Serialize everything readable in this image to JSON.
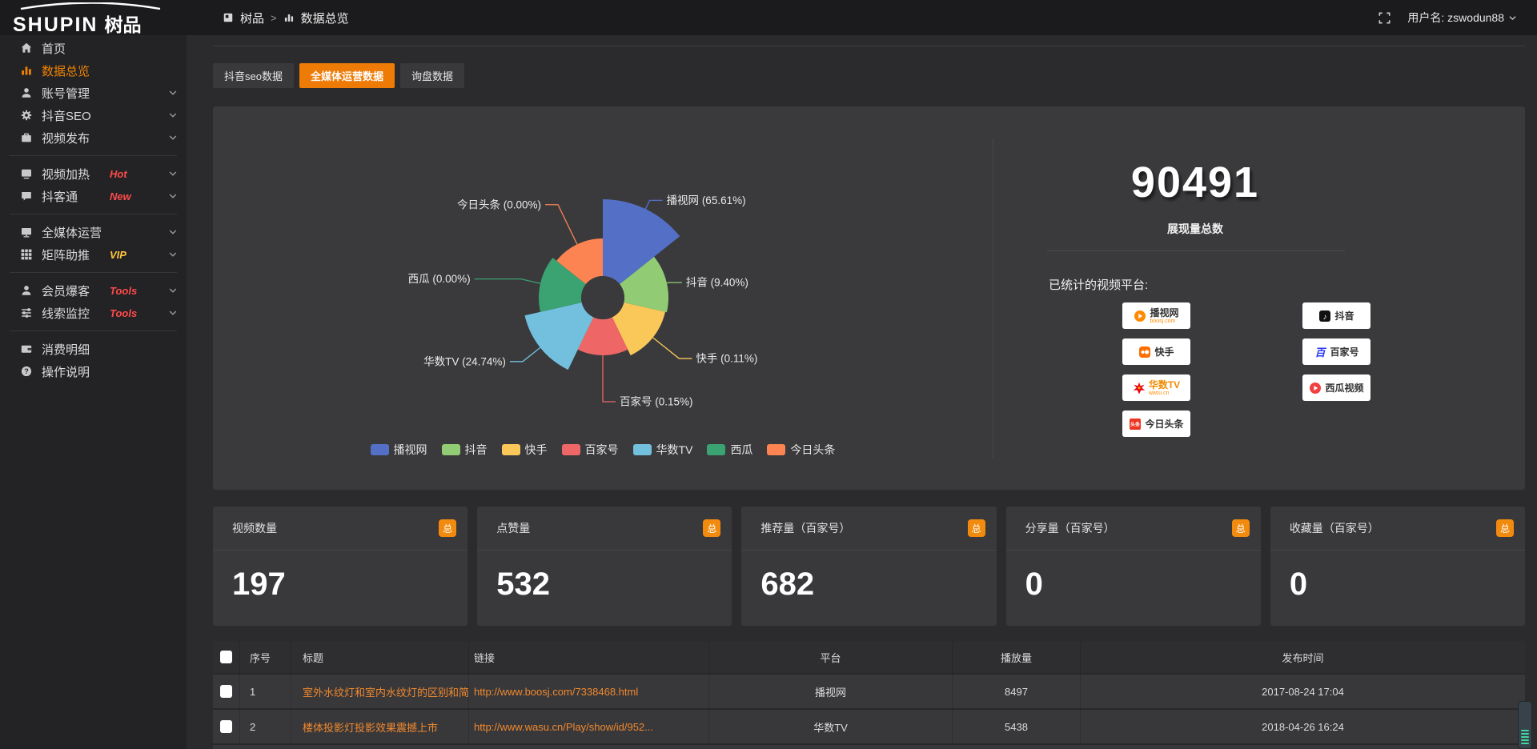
{
  "brand": {
    "en": "SHUPIN",
    "cn": "树品"
  },
  "topbar": {
    "breadcrumb_home": "树品",
    "breadcrumb_sep": ">",
    "breadcrumb_current": "数据总览",
    "username": "用户名: zswodun88"
  },
  "sidebar": {
    "items": [
      {
        "label": "首页",
        "icon": "home-icon",
        "active": false,
        "chevron": false,
        "badge": null,
        "divider_after": false
      },
      {
        "label": "数据总览",
        "icon": "bar-chart-icon",
        "active": true,
        "chevron": false,
        "badge": null,
        "divider_after": false
      },
      {
        "label": "账号管理",
        "icon": "user-icon",
        "active": false,
        "chevron": true,
        "badge": null,
        "divider_after": false
      },
      {
        "label": "抖音SEO",
        "icon": "gear-icon",
        "active": false,
        "chevron": true,
        "badge": null,
        "divider_after": false
      },
      {
        "label": "视频发布",
        "icon": "briefcase-icon",
        "active": false,
        "chevron": true,
        "badge": null,
        "divider_after": true
      },
      {
        "label": "视频加热",
        "icon": "screen-icon",
        "active": false,
        "chevron": true,
        "badge": {
          "text": "Hot",
          "color": "#ff4a4a"
        },
        "divider_after": false
      },
      {
        "label": "抖客通",
        "icon": "chat-icon",
        "active": false,
        "chevron": true,
        "badge": {
          "text": "New",
          "color": "#ff4a4a"
        },
        "divider_after": true
      },
      {
        "label": "全媒体运营",
        "icon": "monitor-icon",
        "active": false,
        "chevron": true,
        "badge": null,
        "divider_after": false
      },
      {
        "label": "矩阵助推",
        "icon": "grid-icon",
        "active": false,
        "chevron": true,
        "badge": {
          "text": "VIP",
          "color": "#ffc53d"
        },
        "divider_after": true
      },
      {
        "label": "会员爆客",
        "icon": "user-icon",
        "active": false,
        "chevron": true,
        "badge": {
          "text": "Tools",
          "color": "#ff4a4a"
        },
        "divider_after": false
      },
      {
        "label": "线索监控",
        "icon": "sliders-icon",
        "active": false,
        "chevron": true,
        "badge": {
          "text": "Tools",
          "color": "#ff4a4a"
        },
        "divider_after": true
      },
      {
        "label": "消费明细",
        "icon": "wallet-icon",
        "active": false,
        "chevron": false,
        "badge": null,
        "divider_after": false
      },
      {
        "label": "操作说明",
        "icon": "help-icon",
        "active": false,
        "chevron": false,
        "badge": null,
        "divider_after": false
      }
    ]
  },
  "tabs": [
    {
      "label": "抖音seo数据",
      "active": false
    },
    {
      "label": "全媒体运营数据",
      "active": true
    },
    {
      "label": "询盘数据",
      "active": false
    }
  ],
  "chart_data": {
    "type": "pie",
    "variant": "nightingale-rose",
    "title": "",
    "legend_position": "bottom",
    "label_format": "{name} ({percent}%)",
    "items": [
      {
        "name": "播视网",
        "percent": 65.61,
        "color": "#5470c6"
      },
      {
        "name": "抖音",
        "percent": 9.4,
        "color": "#91cc75"
      },
      {
        "name": "快手",
        "percent": 0.11,
        "color": "#fac858"
      },
      {
        "name": "百家号",
        "percent": 0.15,
        "color": "#ee6666"
      },
      {
        "name": "华数TV",
        "percent": 24.74,
        "color": "#73c0de"
      },
      {
        "name": "西瓜",
        "percent": 0.0,
        "color": "#3ba272"
      },
      {
        "name": "今日头条",
        "percent": 0.0,
        "color": "#fc8452"
      }
    ]
  },
  "summary": {
    "total_value": "90491",
    "total_label": "展现量总数",
    "platforms_title": "已统计的视频平台:",
    "platforms": [
      {
        "name": "播视网",
        "sub": "boosj.com",
        "icon": "boosj-logo"
      },
      {
        "name": "抖音",
        "sub": "",
        "icon": "douyin-logo"
      },
      {
        "name": "快手",
        "sub": "",
        "icon": "kuaishou-logo"
      },
      {
        "name": "百家号",
        "sub": "",
        "icon": "baijiahao-logo"
      },
      {
        "name": "华数TV",
        "sub": "wasu.cn",
        "icon": "wasu-logo"
      },
      {
        "name": "西瓜视频",
        "sub": "",
        "icon": "xigua-logo"
      },
      {
        "name": "今日头条",
        "sub": "",
        "icon": "toutiao-logo"
      }
    ]
  },
  "stats": [
    {
      "title": "视频数量",
      "badge": "总",
      "value": "197"
    },
    {
      "title": "点赞量",
      "badge": "总",
      "value": "532"
    },
    {
      "title": "推荐量（百家号）",
      "badge": "总",
      "value": "682"
    },
    {
      "title": "分享量（百家号）",
      "badge": "总",
      "value": "0"
    },
    {
      "title": "收藏量（百家号）",
      "badge": "总",
      "value": "0"
    }
  ],
  "table": {
    "columns": [
      "序号",
      "标题",
      "链接",
      "平台",
      "播放量",
      "发布时间"
    ],
    "rows": [
      {
        "index": "1",
        "title": "室外水纹灯和室内水纹灯的区别和简介",
        "link": "http://www.boosj.com/7338468.html",
        "platform": "播视网",
        "views": "8497",
        "time": "2017-08-24 17:04"
      },
      {
        "index": "2",
        "title": "楼体投影灯投影效果震撼上市",
        "link": "http://www.wasu.cn/Play/show/id/952...",
        "platform": "华数TV",
        "views": "5438",
        "time": "2018-04-26 16:24"
      }
    ]
  },
  "colors": {
    "accent": "#ee7b06",
    "badge_orange": "#f28a0e",
    "link_orange": "#f1892d",
    "active_menu": "#f08200"
  }
}
